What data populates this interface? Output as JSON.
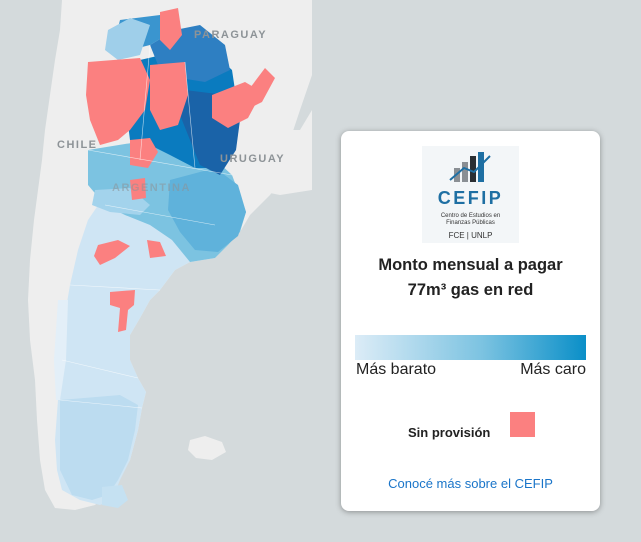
{
  "map": {
    "country_labels": {
      "paraguay": "PARAGUAY",
      "chile": "CHILE",
      "uruguay": "URUGUAY",
      "argentina": "ARGENTINA"
    },
    "colors": {
      "ocean": "#d4dadc",
      "land": "#eeeeee",
      "cheap": "#dcecf7",
      "mid": "#7cc3e1",
      "expensive": "#0a7bbf",
      "darkest": "#1a63a8",
      "no_provision": "#fb8080"
    }
  },
  "panel": {
    "logo": {
      "brand": "CEFIP",
      "subtitle_line1": "Centro de Estudios en",
      "subtitle_line2": "Finanzas Públicas",
      "footer": "FCE | UNLP"
    },
    "title_line1": "Monto mensual a pagar",
    "title_line2": "77m³ gas en red",
    "legend": {
      "low_label": "Más barato",
      "high_label": "Más caro",
      "no_provision_label": "Sin provisión"
    },
    "link_text": "Conocé más sobre el CEFIP"
  }
}
